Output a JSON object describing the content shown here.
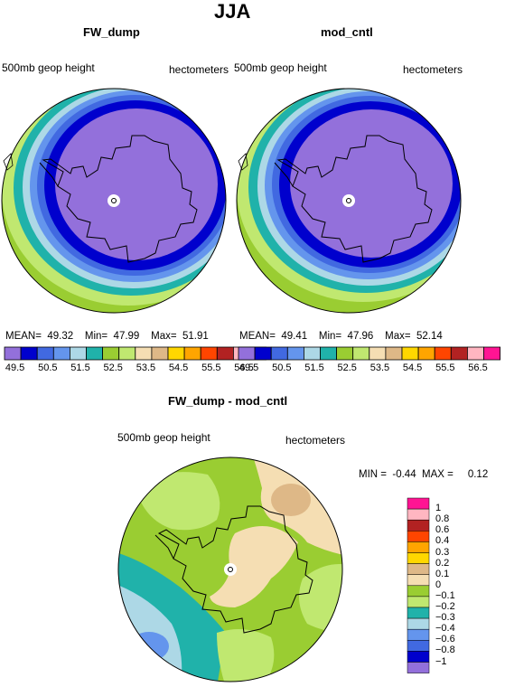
{
  "page_title": "JJA",
  "left_map": {
    "title": "FW_dump",
    "field_label": "500mb geop height",
    "units": "hectometers",
    "stats": {
      "mean_label": "MEAN=",
      "mean": "49.32",
      "min_label": "Min=",
      "min": "47.99",
      "max_label": "Max=",
      "max": "51.91"
    }
  },
  "right_map": {
    "title": "mod_cntl",
    "field_label": "500mb geop height",
    "units": "hectometers",
    "stats": {
      "mean_label": "MEAN=",
      "mean": "49.41",
      "min_label": "Min=",
      "min": "47.96",
      "max_label": "Max=",
      "max": "52.14"
    }
  },
  "diff_map": {
    "title": "FW_dump - mod_cntl",
    "field_label": "500mb geop height",
    "units": "hectometers",
    "stats": {
      "min_label": "MIN =",
      "min": "-0.44",
      "max_label": "MAX =",
      "max": "0.12"
    }
  },
  "horizontal_colorbar": {
    "labels": [
      "49.5",
      "50.5",
      "51.5",
      "52.5",
      "53.5",
      "54.5",
      "55.5",
      "56.5"
    ],
    "colors": [
      "#9370db",
      "#0000cd",
      "#4169e1",
      "#6495ed",
      "#add8e6",
      "#20b2aa",
      "#9acd32",
      "#c0e870",
      "#f5deb3",
      "#deb887",
      "#ffd700",
      "#ffa500",
      "#ff4500",
      "#b22222",
      "#ffb6c1",
      "#ff1493"
    ]
  },
  "vertical_colorbar": {
    "labels": [
      "1",
      "0.8",
      "0.6",
      "0.4",
      "0.3",
      "0.2",
      "0.1",
      "0",
      "−0.1",
      "−0.2",
      "−0.3",
      "−0.4",
      "−0.6",
      "−0.8",
      "−1"
    ],
    "colors": [
      "#ff1493",
      "#ffb6c1",
      "#b22222",
      "#ff4500",
      "#ffa500",
      "#ffd700",
      "#deb887",
      "#f5deb3",
      "#9acd32",
      "#c0e870",
      "#20b2aa",
      "#add8e6",
      "#6495ed",
      "#4169e1",
      "#0000cd",
      "#9370db"
    ]
  }
}
